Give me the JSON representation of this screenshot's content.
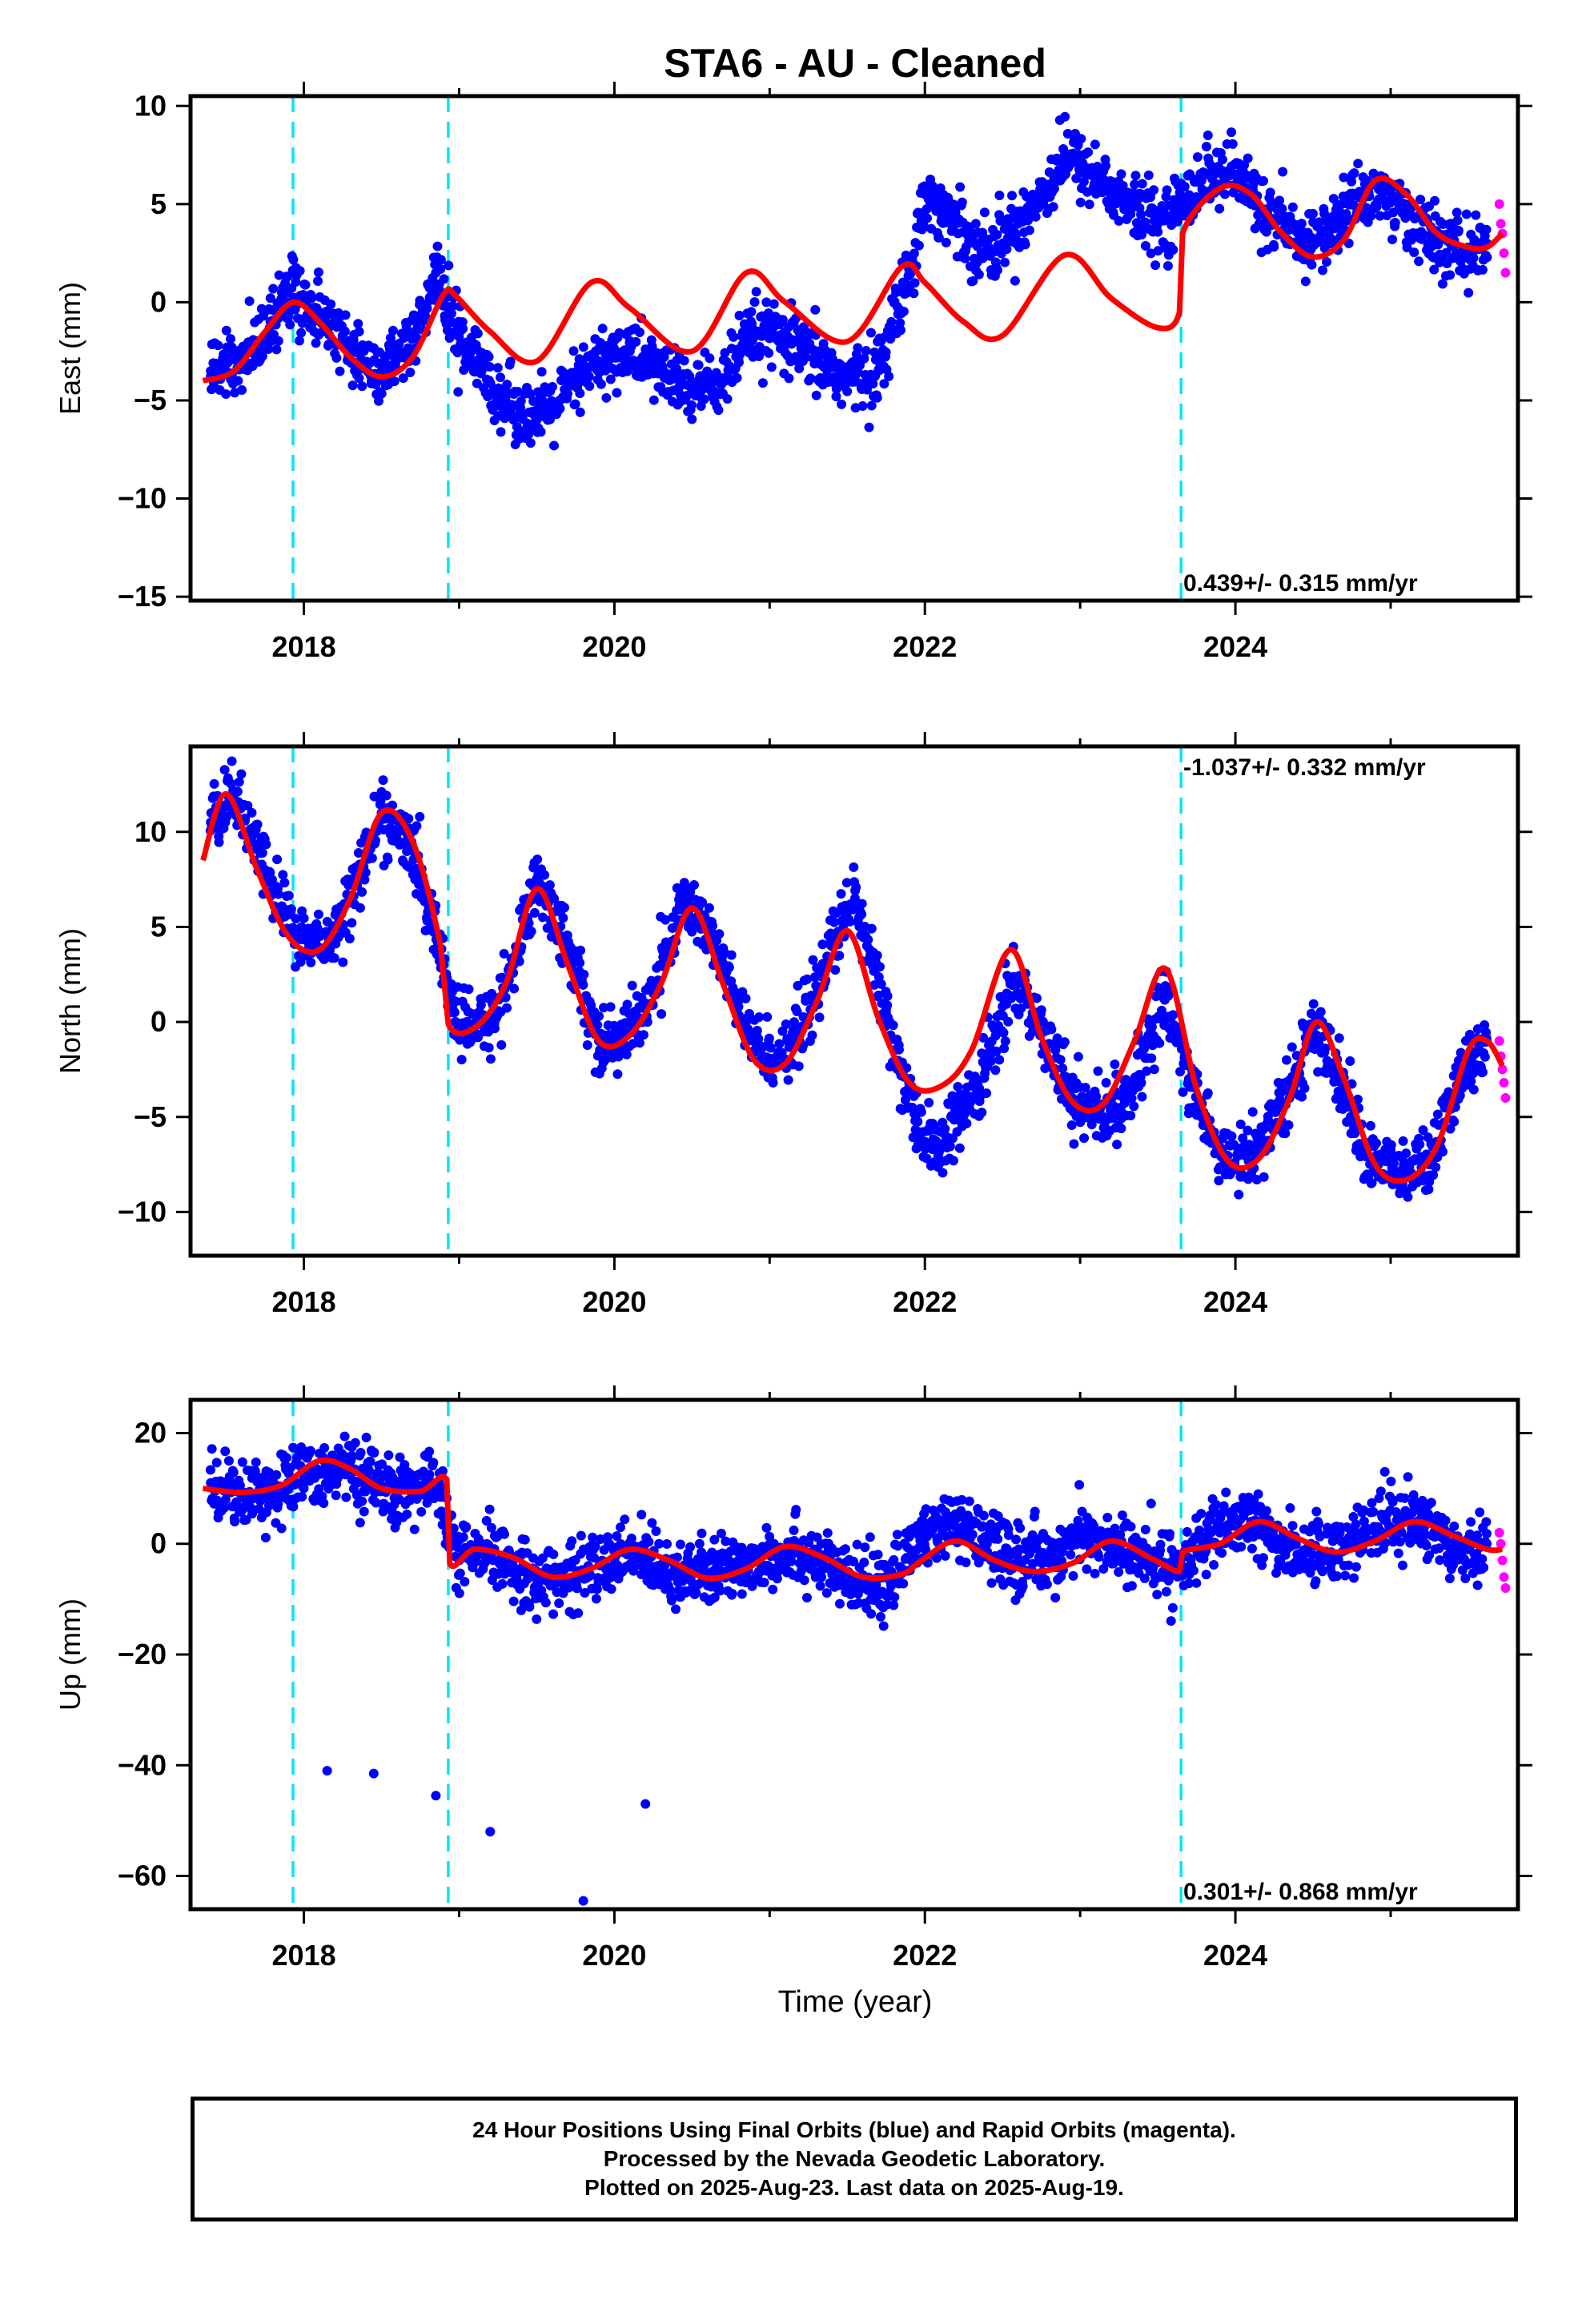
{
  "title": "STA6  - AU - Cleaned",
  "xlabel": "Time (year)",
  "colors": {
    "final": "#0000ff",
    "rapid": "#ff00ff",
    "model": "#ff0000",
    "offset": "#00e5ff",
    "frame": "#000000"
  },
  "chart_data": [
    {
      "type": "scatter",
      "ylabel": "East (mm)",
      "xlim": [
        2017.27,
        2025.82
      ],
      "ylim": [
        -15.2,
        10.5
      ],
      "xticks": [
        2018,
        2020,
        2022,
        2024
      ],
      "yticks": [
        10,
        5,
        0,
        -5,
        -10,
        -15
      ],
      "offsets": [
        2017.93,
        2018.93,
        2023.65
      ],
      "rate_label": "0.439+/- 0.315 mm/yr",
      "rate_label_position": "bottom-right",
      "series": [
        {
          "label": "final",
          "x": [
            2017.4,
            2017.6,
            2017.8,
            2017.9,
            2018.1,
            2018.3,
            2018.5,
            2018.7,
            2018.85,
            2018.95,
            2019.1,
            2019.3,
            2019.5,
            2019.65,
            2019.9,
            2020.1,
            2020.3,
            2020.5,
            2020.7,
            2020.9,
            2021.1,
            2021.3,
            2021.5,
            2021.7,
            2021.9,
            2022.0,
            2022.2,
            2022.4,
            2022.6,
            2022.8,
            2022.9,
            2023.1,
            2023.3,
            2023.5,
            2023.6,
            2023.8,
            2024.0,
            2024.2,
            2024.4,
            2024.6,
            2024.8,
            2024.95,
            2025.1,
            2025.3,
            2025.5,
            2025.62
          ],
          "y": [
            -3.5,
            -3.0,
            -1.0,
            0.5,
            -0.5,
            -2.5,
            -3.5,
            -2.5,
            1.5,
            -1.0,
            -3.0,
            -5.0,
            -6.0,
            -5.0,
            -3.0,
            -2.5,
            -3.5,
            -4.5,
            -4.0,
            -1.5,
            -2.0,
            -3.0,
            -4.0,
            -3.5,
            1.5,
            5.5,
            4.0,
            2.5,
            4.0,
            6.0,
            7.5,
            6.5,
            5.0,
            4.0,
            4.5,
            6.5,
            6.5,
            4.5,
            3.0,
            3.5,
            5.5,
            5.5,
            4.5,
            3.0,
            2.5,
            3.0
          ]
        },
        {
          "label": "rapid",
          "x": [
            2025.7,
            2025.71,
            2025.72,
            2025.73,
            2025.74
          ],
          "y": [
            5.0,
            4.0,
            3.5,
            2.5,
            1.5
          ]
        }
      ],
      "model": {
        "x": [
          2017.35,
          2017.55,
          2017.75,
          2017.93,
          2018.1,
          2018.3,
          2018.5,
          2018.7,
          2018.9,
          2018.98,
          2019.2,
          2019.5,
          2019.85,
          2020.1,
          2020.5,
          2020.85,
          2021.1,
          2021.5,
          2021.85,
          2022.0,
          2022.25,
          2022.5,
          2022.9,
          2023.2,
          2023.5,
          2023.64,
          2023.66,
          2023.9,
          2024.1,
          2024.3,
          2024.5,
          2024.7,
          2024.9,
          2025.1,
          2025.3,
          2025.5,
          2025.62,
          2025.72
        ],
        "y": [
          -4.0,
          -3.5,
          -1.5,
          0.0,
          -1.0,
          -2.8,
          -3.8,
          -2.8,
          0.4,
          0.3,
          -1.5,
          -3.0,
          1.0,
          -0.3,
          -2.5,
          1.5,
          0.0,
          -2.0,
          1.8,
          1.0,
          -1.0,
          -1.7,
          2.4,
          0.2,
          -1.3,
          -0.5,
          3.5,
          5.8,
          5.5,
          3.5,
          2.3,
          3.2,
          6.2,
          5.5,
          3.5,
          2.8,
          2.8,
          3.5
        ]
      }
    },
    {
      "type": "scatter",
      "ylabel": "North (mm)",
      "xlim": [
        2017.27,
        2025.82
      ],
      "ylim": [
        -12.3,
        14.5
      ],
      "xticks": [
        2018,
        2020,
        2022,
        2024
      ],
      "yticks": [
        10,
        5,
        0,
        -5,
        -10
      ],
      "offsets": [
        2017.93,
        2018.93,
        2023.65
      ],
      "rate_label": "-1.037+/- 0.332 mm/yr",
      "rate_label_position": "top-right",
      "series": [
        {
          "label": "final",
          "x": [
            2017.4,
            2017.55,
            2017.75,
            2017.95,
            2018.15,
            2018.35,
            2018.5,
            2018.7,
            2018.9,
            2019.0,
            2019.2,
            2019.35,
            2019.5,
            2019.7,
            2019.9,
            2020.05,
            2020.25,
            2020.45,
            2020.6,
            2020.85,
            2021.0,
            2021.2,
            2021.4,
            2021.55,
            2021.75,
            2021.95,
            2022.1,
            2022.35,
            2022.55,
            2022.75,
            2022.95,
            2023.15,
            2023.35,
            2023.55,
            2023.7,
            2023.9,
            2024.1,
            2024.3,
            2024.5,
            2024.65,
            2024.85,
            2025.05,
            2025.25,
            2025.45,
            2025.62
          ],
          "y": [
            10.5,
            12.0,
            8.0,
            4.5,
            4.0,
            7.5,
            11.0,
            9.0,
            3.0,
            -0.5,
            0.0,
            3.0,
            7.5,
            4.0,
            -1.0,
            -1.0,
            1.5,
            6.5,
            5.0,
            -0.5,
            -2.0,
            -0.5,
            4.0,
            6.5,
            0.5,
            -6.0,
            -6.5,
            -3.5,
            2.0,
            0.0,
            -4.0,
            -5.0,
            -3.5,
            1.5,
            -3.0,
            -7.0,
            -7.0,
            -4.5,
            -0.5,
            -2.5,
            -7.0,
            -8.0,
            -7.5,
            -3.0,
            -1.0
          ]
        },
        {
          "label": "rapid",
          "x": [
            2025.7,
            2025.71,
            2025.72,
            2025.73,
            2025.74
          ],
          "y": [
            -1.0,
            -1.8,
            -2.5,
            -3.2,
            -4.0
          ]
        }
      ],
      "model": {
        "x": [
          2017.35,
          2017.5,
          2017.7,
          2017.9,
          2018.1,
          2018.3,
          2018.5,
          2018.7,
          2018.88,
          2018.93,
          2019.1,
          2019.3,
          2019.5,
          2019.7,
          2019.9,
          2020.1,
          2020.3,
          2020.5,
          2020.7,
          2020.9,
          2021.1,
          2021.3,
          2021.5,
          2021.7,
          2021.9,
          2022.1,
          2022.3,
          2022.55,
          2022.75,
          2022.95,
          2023.15,
          2023.35,
          2023.55,
          2023.75,
          2023.95,
          2024.15,
          2024.35,
          2024.52,
          2024.7,
          2024.9,
          2025.1,
          2025.3,
          2025.5,
          2025.62,
          2025.72
        ],
        "y": [
          8.5,
          12.0,
          8.0,
          4.5,
          3.8,
          6.5,
          11.0,
          9.5,
          4.0,
          -0.1,
          -0.3,
          2.0,
          7.0,
          3.0,
          -1.0,
          -0.7,
          2.0,
          6.0,
          2.0,
          -2.0,
          -2.2,
          1.0,
          4.8,
          0.2,
          -3.2,
          -3.4,
          -1.5,
          3.8,
          -0.8,
          -4.2,
          -4.3,
          -1.0,
          2.8,
          -3.5,
          -7.3,
          -7.2,
          -4.0,
          0.0,
          -3.0,
          -7.5,
          -8.3,
          -6.5,
          -1.5,
          -1.0,
          -2.3
        ]
      }
    },
    {
      "type": "scatter",
      "ylabel": "Up (mm)",
      "xlim": [
        2017.27,
        2025.82
      ],
      "ylim": [
        -66,
        26
      ],
      "xticks": [
        2018,
        2020,
        2022,
        2024
      ],
      "yticks": [
        20,
        0,
        -20,
        -40,
        -60
      ],
      "offsets": [
        2017.93,
        2018.93,
        2023.65
      ],
      "rate_label": "0.301+/- 0.868 mm/yr",
      "rate_label_position": "bottom-right",
      "series": [
        {
          "label": "final",
          "x": [
            2017.4,
            2017.6,
            2017.8,
            2018.0,
            2018.2,
            2018.4,
            2018.6,
            2018.85,
            2019.0,
            2019.2,
            2019.4,
            2019.6,
            2019.8,
            2020.0,
            2020.2,
            2020.4,
            2020.6,
            2020.8,
            2021.0,
            2021.2,
            2021.4,
            2021.6,
            2021.8,
            2022.0,
            2022.2,
            2022.4,
            2022.6,
            2022.8,
            2023.0,
            2023.2,
            2023.4,
            2023.6,
            2023.75,
            2023.9,
            2024.1,
            2024.3,
            2024.5,
            2024.7,
            2024.9,
            2025.1,
            2025.3,
            2025.5,
            2025.62,
            2018.15,
            2018.45,
            2018.85,
            2019.2,
            2019.8,
            2020.2
          ],
          "y": [
            11,
            9,
            10,
            12,
            14,
            12,
            9,
            11,
            -3,
            -2,
            -5,
            -7,
            -5,
            -3,
            -2,
            -5,
            -6,
            -4,
            -2,
            -1,
            -5,
            -8,
            -6,
            2,
            3,
            0,
            -3,
            -2,
            1,
            0,
            -3,
            -4,
            -1,
            2,
            4,
            0,
            -2,
            0,
            3,
            5,
            2,
            -1,
            0,
            -41,
            -41.5,
            -45.5,
            -52,
            -64.5,
            -47
          ]
        },
        {
          "label": "rapid",
          "x": [
            2025.7,
            2025.71,
            2025.72,
            2025.73,
            2025.74
          ],
          "y": [
            2,
            0,
            -3,
            -6,
            -8
          ]
        }
      ],
      "model": {
        "x": [
          2017.35,
          2017.6,
          2017.85,
          2018.1,
          2018.3,
          2018.5,
          2018.75,
          2018.92,
          2018.94,
          2019.1,
          2019.35,
          2019.6,
          2019.85,
          2020.1,
          2020.35,
          2020.6,
          2020.85,
          2021.1,
          2021.35,
          2021.6,
          2021.85,
          2021.98,
          2022.2,
          2022.45,
          2022.7,
          2022.95,
          2023.2,
          2023.45,
          2023.64,
          2023.66,
          2023.9,
          2024.15,
          2024.4,
          2024.65,
          2024.9,
          2025.15,
          2025.4,
          2025.62,
          2025.72
        ],
        "y": [
          10.0,
          9.3,
          10.5,
          15.0,
          13.5,
          10.0,
          9.5,
          11.5,
          -3.5,
          -1.0,
          -2.5,
          -6.0,
          -4.5,
          -1.0,
          -3.0,
          -6.2,
          -4.5,
          -0.5,
          -2.5,
          -6.0,
          -5.5,
          -3.0,
          0.5,
          -3.0,
          -5.0,
          -3.5,
          0.5,
          -2.5,
          -5.0,
          -1.5,
          0.0,
          4.0,
          1.0,
          -1.5,
          0.5,
          4.0,
          1.5,
          -1.0,
          -1.0
        ]
      }
    }
  ],
  "footer": {
    "line1": "24 Hour Positions Using Final Orbits (blue) and Rapid Orbits (magenta).",
    "line2": "Processed by the Nevada Geodetic Laboratory.",
    "line3": "Plotted on 2025-Aug-23. Last data on 2025-Aug-19."
  }
}
